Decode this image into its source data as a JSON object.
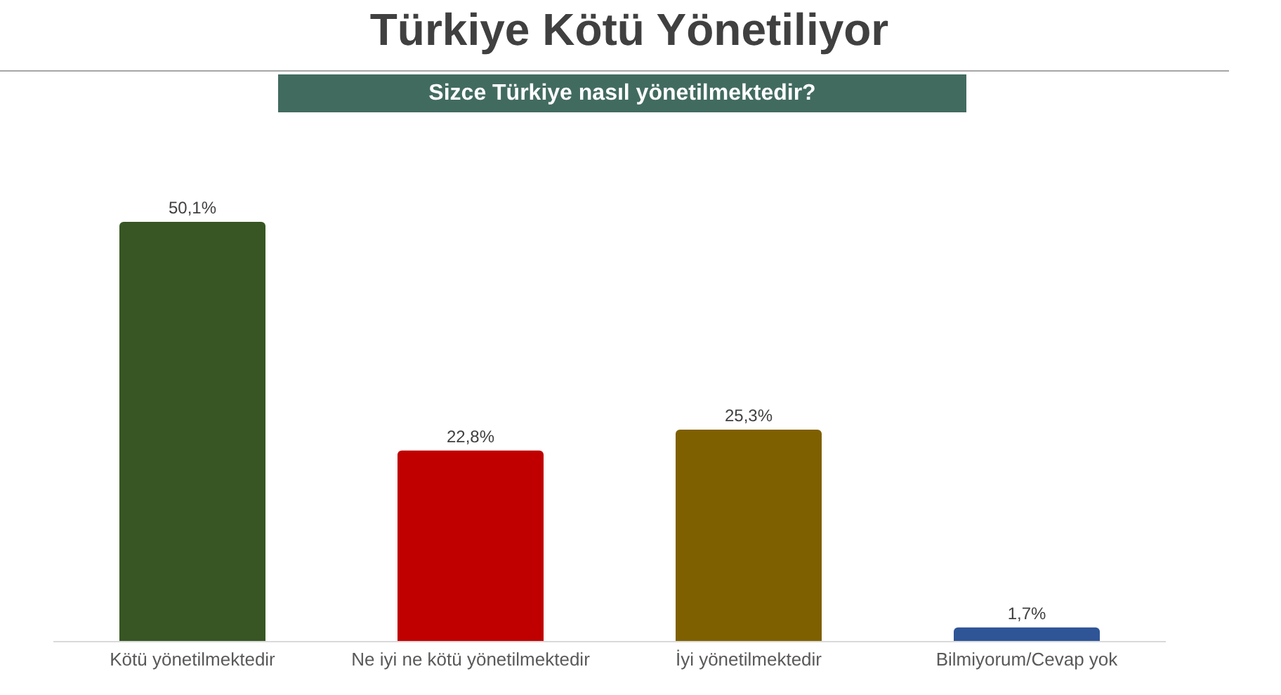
{
  "chart_data": {
    "type": "bar",
    "title": "Türkiye Kötü Yönetiliyor",
    "subtitle": "Sizce Türkiye nasıl yönetilmektedir?",
    "categories": [
      "Kötü yönetilmektedir",
      "Ne iyi ne kötü yönetilmektedir",
      "İyi yönetilmektedir",
      "Bilmiyorum/Cevap yok"
    ],
    "values": [
      50.1,
      22.8,
      25.3,
      1.7
    ],
    "colors": [
      "#375623",
      "#c00000",
      "#7f6000",
      "#2f5597"
    ],
    "value_labels": [
      "50,1%",
      "22,8%",
      "25,3%",
      "1,7%"
    ],
    "grid": false,
    "legend": false
  }
}
